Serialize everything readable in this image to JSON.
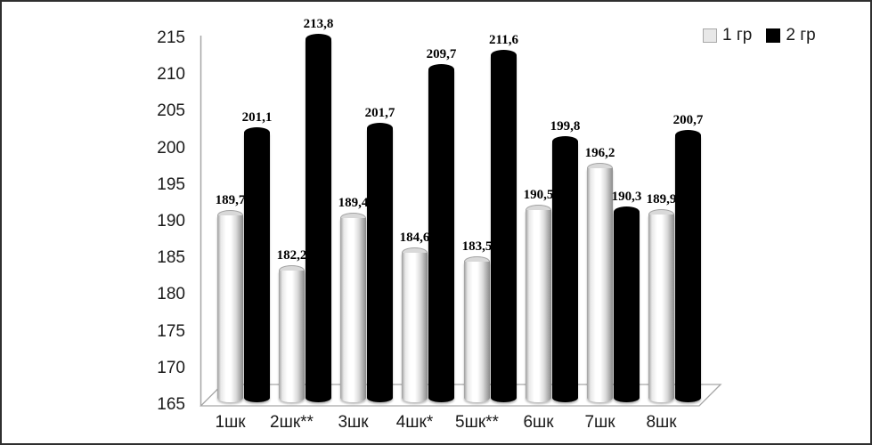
{
  "chart_data": {
    "type": "bar",
    "subtype": "3d-cylinder-clustered",
    "title": "",
    "xlabel": "",
    "ylabel": "",
    "categories": [
      "1шк",
      "2шк**",
      "3шк",
      "4шк*",
      "5шк**",
      "6шк",
      "7шк",
      "8шк"
    ],
    "series": [
      {
        "name": "1 гр",
        "color": "#f0f0f0",
        "values": [
          189.7,
          182.2,
          189.4,
          184.6,
          183.5,
          190.5,
          196.2,
          189.9
        ],
        "value_labels": [
          "189,7",
          "182,2",
          "189,4",
          "184,6",
          "183,5",
          "190,5",
          "196,2",
          "189,9"
        ]
      },
      {
        "name": "2 гр",
        "color": "#000000",
        "values": [
          201.1,
          213.8,
          201.7,
          209.7,
          211.6,
          199.8,
          190.3,
          200.7
        ],
        "value_labels": [
          "201,1",
          "213,8",
          "201,7",
          "209,7",
          "211,6",
          "199,8",
          "190,3",
          "200,7"
        ]
      }
    ],
    "ylim": [
      165,
      215
    ],
    "yticks": [
      215,
      210,
      205,
      200,
      195,
      190,
      185,
      180,
      175,
      170,
      165
    ],
    "grid": false,
    "legend_position": "top-right",
    "decimal_separator": ",",
    "colors": {
      "axis": "#a6a6a6",
      "text": "#1a1a1a",
      "data_label": "#000000",
      "frame_border": "#2f2f2f"
    }
  }
}
